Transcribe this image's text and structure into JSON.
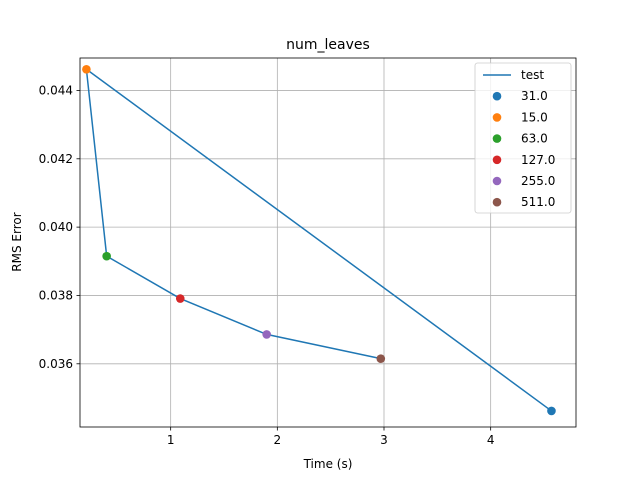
{
  "chart_data": {
    "type": "line",
    "title": "num_leaves",
    "xlabel": "Time (s)",
    "ylabel": "RMS Error",
    "xlim": [
      0.15,
      4.8
    ],
    "ylim": [
      0.03415,
      0.04495
    ],
    "xticks": [
      1,
      2,
      3,
      4
    ],
    "yticks": [
      0.036,
      0.038,
      0.04,
      0.042,
      0.044
    ],
    "ytick_labels": [
      "0.036",
      "0.038",
      "0.040",
      "0.042",
      "0.044"
    ],
    "xtick_labels": [
      "1",
      "2",
      "3",
      "4"
    ],
    "grid": true,
    "legend_position": "top-right",
    "line": {
      "name": "test",
      "color": "#1f77b4",
      "x": [
        4.57,
        0.21,
        0.4,
        1.09,
        1.9,
        2.97
      ],
      "y": [
        0.03462,
        0.04462,
        0.03915,
        0.03791,
        0.03686,
        0.03615
      ]
    },
    "points": [
      {
        "name": "31.0",
        "x": 4.57,
        "y": 0.03462,
        "color": "#1f77b4"
      },
      {
        "name": "15.0",
        "x": 0.21,
        "y": 0.04462,
        "color": "#ff7f0e"
      },
      {
        "name": "63.0",
        "x": 0.4,
        "y": 0.03915,
        "color": "#2ca02c"
      },
      {
        "name": "127.0",
        "x": 1.09,
        "y": 0.03791,
        "color": "#d62728"
      },
      {
        "name": "255.0",
        "x": 1.9,
        "y": 0.03686,
        "color": "#9467bd"
      },
      {
        "name": "511.0",
        "x": 2.97,
        "y": 0.03615,
        "color": "#8c564b"
      }
    ]
  }
}
